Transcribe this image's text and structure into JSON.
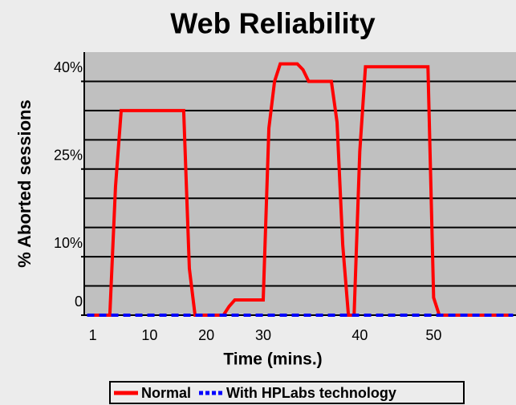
{
  "chart_data": {
    "type": "line",
    "title": "Web Reliability",
    "x_label": "Time (mins.)",
    "y_label": "% Aborted sessions",
    "categories": [
      null,
      "1",
      null,
      null,
      null,
      null,
      null,
      null,
      null,
      null,
      null,
      "10",
      null,
      null,
      null,
      null,
      null,
      null,
      null,
      null,
      null,
      "20",
      null,
      null,
      null,
      null,
      null,
      null,
      null,
      null,
      null,
      "30",
      null,
      null,
      null,
      null,
      null,
      null,
      null,
      null,
      null,
      null,
      null,
      null,
      null,
      null,
      null,
      null,
      "40",
      null,
      null,
      null,
      null,
      null,
      null,
      null,
      null,
      null,
      null,
      null,
      null,
      "50",
      null,
      null,
      null,
      null,
      null,
      null,
      null,
      null,
      null,
      null,
      null,
      null,
      null,
      null
    ],
    "series": [
      {
        "name": "Normal",
        "color": "#ff0000",
        "dashed": false,
        "values": [
          0,
          0,
          0,
          0,
          0,
          22,
          35,
          35,
          35,
          35,
          35,
          35,
          35,
          35,
          35,
          35,
          35,
          35,
          8,
          0,
          0,
          0,
          0,
          0,
          0,
          1.5,
          2.6,
          2.6,
          2.6,
          2.6,
          2.6,
          2.6,
          32,
          40,
          43,
          43,
          43,
          43,
          42,
          40,
          40,
          40,
          40,
          40,
          33,
          12,
          0,
          0,
          28,
          42.5,
          42.5,
          42.5,
          42.5,
          42.5,
          42.5,
          42.5,
          42.5,
          42.5,
          42.5,
          42.5,
          42.5,
          3,
          0,
          0,
          0,
          0,
          0,
          0,
          0,
          0,
          0,
          0,
          0,
          0,
          0,
          0
        ]
      },
      {
        "name": "With HPLabs technology",
        "color": "#0000ff",
        "dashed": true,
        "values": [
          0,
          0,
          0,
          0,
          0,
          0,
          0,
          0,
          0,
          0,
          0,
          0,
          0,
          0,
          0,
          0,
          0,
          0,
          0,
          0,
          0,
          0,
          0,
          0,
          0,
          0,
          0,
          0,
          0,
          0,
          0,
          0,
          0,
          0,
          0,
          0,
          0,
          0,
          0,
          0,
          0,
          0,
          0,
          0,
          0,
          0,
          0,
          0,
          0,
          0,
          0,
          0,
          0,
          0,
          0,
          0,
          0,
          0,
          0,
          0,
          0,
          0,
          0,
          0,
          0,
          0,
          0,
          0,
          0,
          0,
          0,
          0,
          0,
          0,
          0,
          0
        ]
      }
    ],
    "ylim": [
      0,
      45
    ],
    "yticks": [
      0,
      {
        "value": 10,
        "label": "10%"
      },
      {
        "value": 25,
        "label": "25%"
      },
      {
        "value": 40,
        "label": "40%"
      }
    ],
    "ygrid": [
      5,
      10,
      15,
      20,
      25,
      30,
      35,
      40
    ],
    "legend": "bottom",
    "plot_color": "#c0c0c0"
  }
}
